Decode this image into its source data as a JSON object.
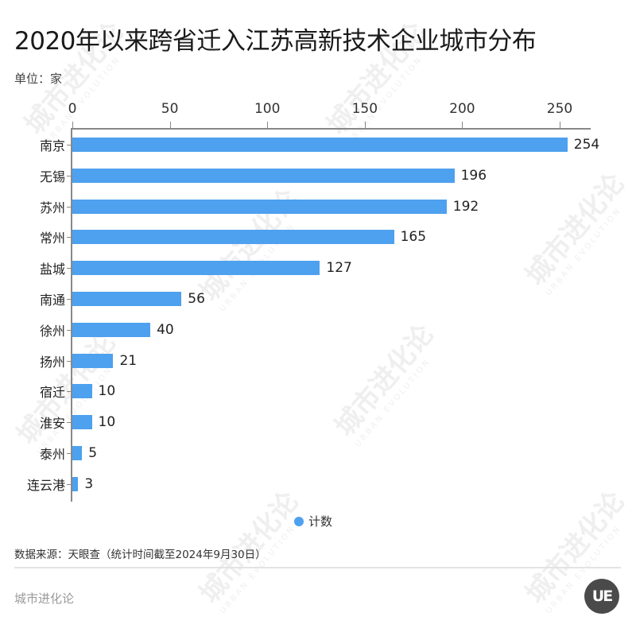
{
  "title": "2020年以来跨省迁入江苏高新技术企业城市分布",
  "unit": "单位：家",
  "legend": {
    "label": "计数",
    "color": "#4ea1ee"
  },
  "source": "数据来源：天眼查（统计时间截至2024年9月30日）",
  "brand": "城市进化论",
  "logo": "UE",
  "watermark": {
    "text": "城市进化论",
    "sub": "URBAN EVOLUTION"
  },
  "chart_data": {
    "type": "bar",
    "orientation": "horizontal",
    "title": "2020年以来跨省迁入江苏高新技术企业城市分布",
    "xlabel": "",
    "ylabel": "单位：家",
    "xlim": [
      0,
      265
    ],
    "x_ticks": [
      0,
      50,
      100,
      150,
      200,
      250
    ],
    "x_axis_position": "top",
    "grid": false,
    "legend_position": "bottom",
    "categories": [
      "南京",
      "无锡",
      "苏州",
      "常州",
      "盐城",
      "南通",
      "徐州",
      "扬州",
      "宿迁",
      "淮安",
      "泰州",
      "连云港"
    ],
    "series": [
      {
        "name": "计数",
        "color": "#4ea1ee",
        "values": [
          254,
          196,
          192,
          165,
          127,
          56,
          40,
          21,
          10,
          10,
          5,
          3
        ]
      }
    ],
    "data_labels": true
  }
}
